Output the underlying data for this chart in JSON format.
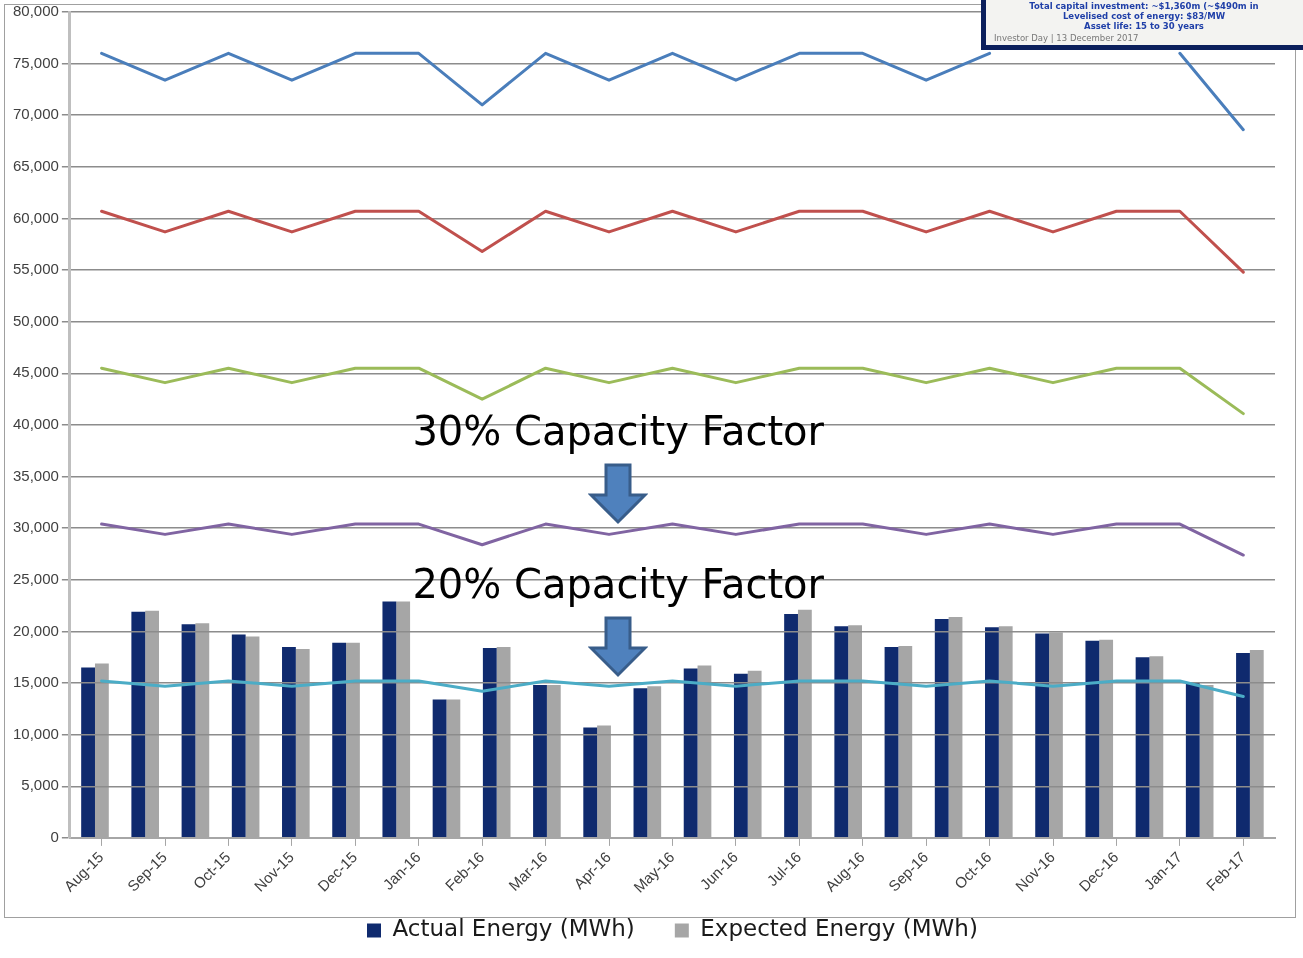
{
  "chart_data": [
    {
      "type": "line",
      "categories": [
        "Aug-15",
        "Sep-15",
        "Oct-15",
        "Nov-15",
        "Dec-15",
        "Jan-16",
        "Feb-16",
        "Mar-16",
        "Apr-16",
        "May-16",
        "Jun-16",
        "Jul-16",
        "Aug-16",
        "Sep-16",
        "Oct-16",
        "Nov-16",
        "Dec-16",
        "Jan-17",
        "Feb-17"
      ],
      "series": [
        {
          "color": "#4a7ebb",
          "values": [
            76000,
            73400,
            76000,
            73400,
            76000,
            76000,
            71000,
            76000,
            73400,
            76000,
            73400,
            76000,
            76000,
            73400,
            76000,
            null,
            null,
            76000,
            68600
          ]
        },
        {
          "color": "#c0504d",
          "values": [
            60700,
            58700,
            60700,
            58700,
            60700,
            60700,
            56800,
            60700,
            58700,
            60700,
            58700,
            60700,
            60700,
            58700,
            60700,
            58700,
            60700,
            60700,
            54800
          ]
        },
        {
          "color": "#9bbb59",
          "values": [
            45500,
            44100,
            45500,
            44100,
            45500,
            45500,
            42500,
            45500,
            44100,
            45500,
            44100,
            45500,
            45500,
            44100,
            45500,
            44100,
            45500,
            45500,
            41100
          ]
        },
        {
          "color": "#8064a2",
          "values": [
            30400,
            29400,
            30400,
            29400,
            30400,
            30400,
            28400,
            30400,
            29400,
            30400,
            29400,
            30400,
            30400,
            29400,
            30400,
            29400,
            30400,
            30400,
            27400
          ]
        },
        {
          "color": "#4bacc6",
          "values": [
            15200,
            14700,
            15200,
            14700,
            15200,
            15200,
            14200,
            15200,
            14700,
            15200,
            14700,
            15200,
            15200,
            14700,
            15200,
            14700,
            15200,
            15200,
            13700
          ]
        }
      ],
      "ylim": [
        0,
        80000
      ],
      "yticks": [
        {
          "value": 0,
          "label": "0"
        },
        {
          "value": 5000,
          "label": "5,000"
        },
        {
          "value": 10000,
          "label": "10,000"
        },
        {
          "value": 15000,
          "label": "15,000"
        },
        {
          "value": 20000,
          "label": "20,000"
        },
        {
          "value": 25000,
          "label": "25,000"
        },
        {
          "value": 30000,
          "label": "30,000"
        },
        {
          "value": 35000,
          "label": "35,000"
        },
        {
          "value": 40000,
          "label": "40,000"
        },
        {
          "value": 45000,
          "label": "45,000"
        },
        {
          "value": 50000,
          "label": "50,000"
        },
        {
          "value": 55000,
          "label": "55,000"
        },
        {
          "value": 60000,
          "label": "60,000"
        },
        {
          "value": 65000,
          "label": "65,000"
        },
        {
          "value": 70000,
          "label": "70,000"
        },
        {
          "value": 75000,
          "label": "75,000"
        },
        {
          "value": 80000,
          "label": "80,000"
        }
      ],
      "grid": "y",
      "marker": "none",
      "line_style": "solid",
      "legend": false,
      "annotations": [
        "30% Capacity Factor",
        "20% Capacity Factor",
        "Total capital investment: ~$1,360m (~$490m in",
        "Levelised cost of energy: $83/MW",
        "Asset life: 15 to 30 years",
        "Investor Day | 13 December 2017"
      ]
    },
    {
      "type": "bar",
      "categories": [
        null,
        null,
        null,
        null,
        null,
        null,
        null,
        null,
        null,
        null,
        null,
        null,
        null,
        null,
        null,
        null,
        null,
        null,
        null,
        null,
        null,
        null,
        null,
        null
      ],
      "series": [
        {
          "name": "Actual Energy (MWh)",
          "color": "#0f2a6e",
          "values": [
            16500,
            21900,
            20700,
            19700,
            18500,
            18900,
            22900,
            13400,
            18400,
            14800,
            10700,
            14500,
            16400,
            15900,
            21700,
            20500,
            18500,
            21200,
            20400,
            19800,
            19100,
            17500,
            15000,
            17900
          ]
        },
        {
          "name": "Expected Energy (MWh)",
          "color": "#a6a6a6",
          "values": [
            16900,
            22000,
            20800,
            19500,
            18300,
            18900,
            22900,
            13400,
            18500,
            14800,
            10900,
            14700,
            16700,
            16200,
            22100,
            20600,
            18600,
            21400,
            20500,
            19900,
            19200,
            17600,
            14800,
            18200
          ]
        }
      ],
      "ylim": [
        0,
        80000
      ],
      "tick_labels": false,
      "grid": false,
      "legend": "bottom"
    }
  ]
}
